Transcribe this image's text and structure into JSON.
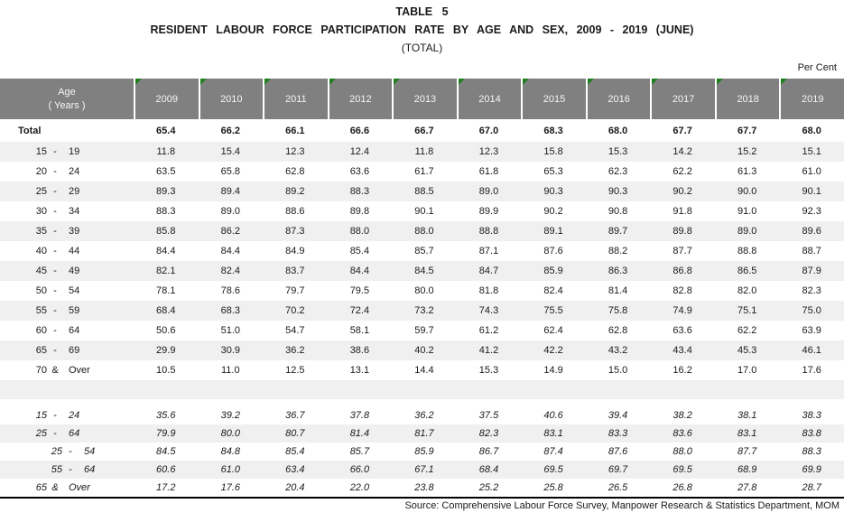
{
  "title": {
    "table_number": "TABLE 5",
    "heading": "RESIDENT LABOUR FORCE PARTICIPATION RATE BY AGE AND SEX, 2009 - 2019 (JUNE)",
    "subtitle": "(TOTAL)",
    "unit": "Per Cent"
  },
  "table": {
    "age_header": [
      "Age",
      "( Years )"
    ],
    "years": [
      "2009",
      "2010",
      "2011",
      "2012",
      "2013",
      "2014",
      "2015",
      "2016",
      "2017",
      "2018",
      "2019"
    ],
    "total_row": {
      "label": "Total",
      "values": [
        "65.4",
        "66.2",
        "66.1",
        "66.6",
        "66.7",
        "67.0",
        "68.3",
        "68.0",
        "67.7",
        "67.7",
        "68.0"
      ]
    },
    "age_rows": [
      {
        "low": "15",
        "sep": "-",
        "high": "19",
        "values": [
          "11.8",
          "15.4",
          "12.3",
          "12.4",
          "11.8",
          "12.3",
          "15.8",
          "15.3",
          "14.2",
          "15.2",
          "15.1"
        ]
      },
      {
        "low": "20",
        "sep": "-",
        "high": "24",
        "values": [
          "63.5",
          "65.8",
          "62.8",
          "63.6",
          "61.7",
          "61.8",
          "65.3",
          "62.3",
          "62.2",
          "61.3",
          "61.0"
        ]
      },
      {
        "low": "25",
        "sep": "-",
        "high": "29",
        "values": [
          "89.3",
          "89.4",
          "89.2",
          "88.3",
          "88.5",
          "89.0",
          "90.3",
          "90.3",
          "90.2",
          "90.0",
          "90.1"
        ]
      },
      {
        "low": "30",
        "sep": "-",
        "high": "34",
        "values": [
          "88.3",
          "89.0",
          "88.6",
          "89.8",
          "90.1",
          "89.9",
          "90.2",
          "90.8",
          "91.8",
          "91.0",
          "92.3"
        ]
      },
      {
        "low": "35",
        "sep": "-",
        "high": "39",
        "values": [
          "85.8",
          "86.2",
          "87.3",
          "88.0",
          "88.0",
          "88.8",
          "89.1",
          "89.7",
          "89.8",
          "89.0",
          "89.6"
        ]
      },
      {
        "low": "40",
        "sep": "-",
        "high": "44",
        "values": [
          "84.4",
          "84.4",
          "84.9",
          "85.4",
          "85.7",
          "87.1",
          "87.6",
          "88.2",
          "87.7",
          "88.8",
          "88.7"
        ]
      },
      {
        "low": "45",
        "sep": "-",
        "high": "49",
        "values": [
          "82.1",
          "82.4",
          "83.7",
          "84.4",
          "84.5",
          "84.7",
          "85.9",
          "86.3",
          "86.8",
          "86.5",
          "87.9"
        ]
      },
      {
        "low": "50",
        "sep": "-",
        "high": "54",
        "values": [
          "78.1",
          "78.6",
          "79.7",
          "79.5",
          "80.0",
          "81.8",
          "82.4",
          "81.4",
          "82.8",
          "82.0",
          "82.3"
        ]
      },
      {
        "low": "55",
        "sep": "-",
        "high": "59",
        "values": [
          "68.4",
          "68.3",
          "70.2",
          "72.4",
          "73.2",
          "74.3",
          "75.5",
          "75.8",
          "74.9",
          "75.1",
          "75.0"
        ]
      },
      {
        "low": "60",
        "sep": "-",
        "high": "64",
        "values": [
          "50.6",
          "51.0",
          "54.7",
          "58.1",
          "59.7",
          "61.2",
          "62.4",
          "62.8",
          "63.6",
          "62.2",
          "63.9"
        ]
      },
      {
        "low": "65",
        "sep": "-",
        "high": "69",
        "values": [
          "29.9",
          "30.9",
          "36.2",
          "38.6",
          "40.2",
          "41.2",
          "42.2",
          "43.2",
          "43.4",
          "45.3",
          "46.1"
        ]
      },
      {
        "low": "70",
        "sep": "&",
        "high": "Over",
        "values": [
          "10.5",
          "11.0",
          "12.5",
          "13.1",
          "14.4",
          "15.3",
          "14.9",
          "15.0",
          "16.2",
          "17.0",
          "17.6"
        ]
      }
    ],
    "summary_rows": [
      {
        "low": "15",
        "sep": "-",
        "high": "24",
        "indent": false,
        "values": [
          "35.6",
          "39.2",
          "36.7",
          "37.8",
          "36.2",
          "37.5",
          "40.6",
          "39.4",
          "38.2",
          "38.1",
          "38.3"
        ]
      },
      {
        "low": "25",
        "sep": "-",
        "high": "64",
        "indent": false,
        "values": [
          "79.9",
          "80.0",
          "80.7",
          "81.4",
          "81.7",
          "82.3",
          "83.1",
          "83.3",
          "83.6",
          "83.1",
          "83.8"
        ]
      },
      {
        "low": "25",
        "sep": "-",
        "high": "54",
        "indent": true,
        "values": [
          "84.5",
          "84.8",
          "85.4",
          "85.7",
          "85.9",
          "86.7",
          "87.4",
          "87.6",
          "88.0",
          "87.7",
          "88.3"
        ]
      },
      {
        "low": "55",
        "sep": "-",
        "high": "64",
        "indent": true,
        "values": [
          "60.6",
          "61.0",
          "63.4",
          "66.0",
          "67.1",
          "68.4",
          "69.5",
          "69.7",
          "69.5",
          "68.9",
          "69.9"
        ]
      },
      {
        "low": "65",
        "sep": "&",
        "high": "Over",
        "indent": false,
        "values": [
          "17.2",
          "17.6",
          "20.4",
          "22.0",
          "23.8",
          "25.2",
          "25.8",
          "26.5",
          "26.8",
          "27.8",
          "28.7"
        ]
      }
    ]
  },
  "source": "Source:  Comprehensive Labour Force Survey, Manpower Research & Statistics Department, MOM",
  "colors": {
    "header_bg": "#808080",
    "header_text": "#f5f5f5",
    "row_stripe": "#f0f0f0",
    "flag_green": "#1e7e1e"
  }
}
